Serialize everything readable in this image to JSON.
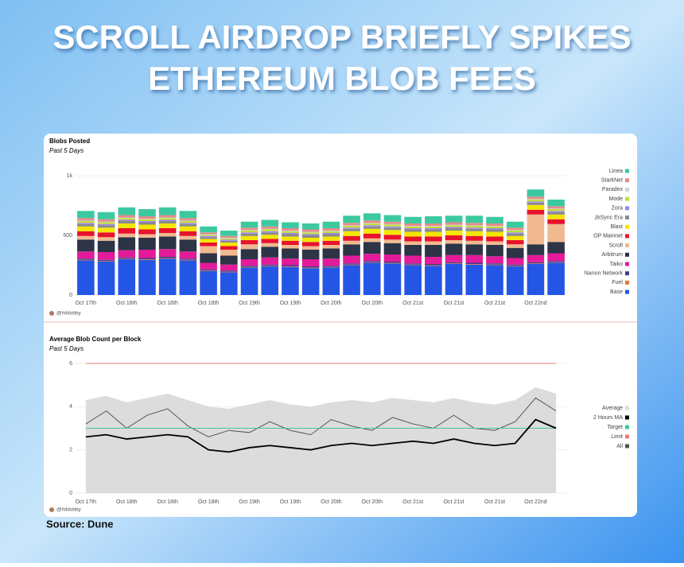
{
  "header": {
    "title_lines": [
      "SCROLL AIRDROP BRIEFLY SPIKES",
      "ETHEREUM BLOB FEES"
    ]
  },
  "chart_data": [
    {
      "type": "bar",
      "stacked": true,
      "title": "Blobs Posted",
      "subtitle": "Past 5 Days",
      "credit": "@hildobby",
      "categories": [
        "Oct 17th",
        null,
        "Oct 18th",
        null,
        "Oct 18th",
        null,
        "Oct 18th",
        null,
        "Oct 19th",
        null,
        "Oct 19th",
        null,
        "Oct 20th",
        null,
        "Oct 20th",
        null,
        "Oct 21st",
        null,
        "Oct 21st",
        null,
        "Oct 21st",
        null,
        "Oct 22nd",
        null
      ],
      "ylim": [
        0,
        1100
      ],
      "yticks": [
        0,
        500,
        {
          "value": 1000,
          "label": "1k"
        }
      ],
      "grid": true,
      "series": [
        {
          "name": "Base",
          "color": "#2456e6",
          "values": [
            290,
            280,
            300,
            295,
            305,
            290,
            200,
            190,
            230,
            240,
            235,
            225,
            230,
            250,
            270,
            265,
            250,
            245,
            260,
            255,
            250,
            240,
            260,
            270
          ]
        },
        {
          "name": "Fuel",
          "color": "#ea7440",
          "values": [
            5,
            5,
            5,
            5,
            5,
            5,
            5,
            5,
            5,
            5,
            5,
            5,
            5,
            5,
            5,
            5,
            5,
            5,
            5,
            5,
            5,
            5,
            5,
            5
          ]
        },
        {
          "name": "Nanon Network",
          "color": "#3b3f8f",
          "values": [
            10,
            10,
            10,
            10,
            10,
            10,
            10,
            10,
            10,
            10,
            10,
            10,
            10,
            10,
            10,
            10,
            10,
            10,
            10,
            10,
            10,
            10,
            10,
            10
          ]
        },
        {
          "name": "Taiko",
          "color": "#e31a9a",
          "values": [
            60,
            65,
            60,
            70,
            65,
            60,
            55,
            50,
            55,
            60,
            55,
            60,
            60,
            65,
            60,
            60,
            65,
            60,
            60,
            65,
            60,
            55,
            60,
            65
          ]
        },
        {
          "name": "Arbitrum",
          "color": "#2c3446",
          "values": [
            100,
            95,
            110,
            100,
            105,
            100,
            80,
            75,
            85,
            90,
            85,
            80,
            85,
            95,
            100,
            95,
            90,
            100,
            95,
            90,
            95,
            85,
            90,
            95
          ]
        },
        {
          "name": "Scroll",
          "color": "#f0b98f",
          "values": [
            30,
            30,
            30,
            30,
            30,
            30,
            60,
            50,
            40,
            30,
            30,
            30,
            30,
            30,
            30,
            30,
            30,
            30,
            30,
            30,
            30,
            30,
            250,
            150
          ]
        },
        {
          "name": "OP Mainnet",
          "color": "#e8122d",
          "values": [
            40,
            40,
            45,
            40,
            40,
            40,
            30,
            30,
            35,
            35,
            35,
            35,
            35,
            40,
            40,
            40,
            40,
            40,
            40,
            40,
            40,
            35,
            40,
            40
          ]
        },
        {
          "name": "Blast",
          "color": "#f4e600",
          "values": [
            40,
            40,
            40,
            40,
            40,
            40,
            30,
            30,
            35,
            35,
            35,
            35,
            35,
            40,
            40,
            40,
            40,
            40,
            40,
            40,
            40,
            35,
            40,
            40
          ]
        },
        {
          "name": "zkSync Era",
          "color": "#8a8a8a",
          "values": [
            20,
            20,
            20,
            20,
            20,
            20,
            15,
            15,
            20,
            20,
            20,
            20,
            20,
            20,
            20,
            20,
            20,
            20,
            20,
            20,
            20,
            20,
            20,
            20
          ]
        },
        {
          "name": "Zora",
          "color": "#9f86f0",
          "values": [
            10,
            10,
            10,
            10,
            10,
            10,
            10,
            10,
            10,
            10,
            10,
            10,
            10,
            10,
            10,
            10,
            10,
            10,
            10,
            10,
            10,
            10,
            10,
            10
          ]
        },
        {
          "name": "Mode",
          "color": "#c2df3a",
          "values": [
            15,
            15,
            15,
            15,
            15,
            15,
            10,
            10,
            15,
            15,
            15,
            15,
            15,
            15,
            15,
            15,
            15,
            15,
            15,
            15,
            15,
            15,
            15,
            15
          ]
        },
        {
          "name": "Paradex",
          "color": "#d2d2d2",
          "values": [
            5,
            5,
            5,
            5,
            5,
            5,
            5,
            5,
            5,
            5,
            5,
            5,
            5,
            5,
            5,
            5,
            5,
            5,
            5,
            5,
            5,
            5,
            5,
            5
          ]
        },
        {
          "name": "StarkNet",
          "color": "#e58b8b",
          "values": [
            20,
            20,
            20,
            20,
            20,
            20,
            15,
            15,
            20,
            20,
            20,
            20,
            20,
            20,
            20,
            20,
            20,
            20,
            20,
            20,
            20,
            20,
            20,
            20
          ]
        },
        {
          "name": "Linea",
          "color": "#3cc9a0",
          "values": [
            60,
            60,
            65,
            60,
            65,
            60,
            50,
            45,
            50,
            55,
            50,
            50,
            55,
            60,
            60,
            55,
            55,
            60,
            55,
            60,
            55,
            50,
            60,
            55
          ]
        }
      ]
    },
    {
      "type": "line",
      "title": "Average Blob Count per Block",
      "subtitle": "Past 5 Days",
      "credit": "@hildobby",
      "categories": [
        "Oct 17th",
        null,
        "Oct 18th",
        null,
        "Oct 18th",
        null,
        "Oct 18th",
        null,
        "Oct 19th",
        null,
        "Oct 19th",
        null,
        "Oct 20th",
        null,
        "Oct 20th",
        null,
        "Oct 21st",
        null,
        "Oct 21st",
        null,
        "Oct 21st",
        null,
        "Oct 22nd",
        null
      ],
      "ylim": [
        0,
        6.5
      ],
      "yticks": [
        0,
        2,
        4,
        6
      ],
      "series": [
        {
          "name": "All",
          "color": "#555555",
          "values": [
            3.2,
            3.8,
            3.0,
            3.6,
            3.9,
            3.1,
            2.6,
            2.9,
            2.8,
            3.3,
            2.9,
            2.7,
            3.4,
            3.1,
            2.9,
            3.5,
            3.2,
            3.0,
            3.6,
            3.0,
            2.9,
            3.3,
            4.4,
            3.8
          ]
        },
        {
          "name": "Limit",
          "color": "#ef7b7b",
          "values": [
            6,
            6,
            6,
            6,
            6,
            6,
            6,
            6,
            6,
            6,
            6,
            6,
            6,
            6,
            6,
            6,
            6,
            6,
            6,
            6,
            6,
            6,
            6,
            6
          ]
        },
        {
          "name": "Target",
          "color": "#3cc9a0",
          "values": [
            3,
            3,
            3,
            3,
            3,
            3,
            3,
            3,
            3,
            3,
            3,
            3,
            3,
            3,
            3,
            3,
            3,
            3,
            3,
            3,
            3,
            3,
            3,
            3
          ]
        },
        {
          "name": "2 Hours MA",
          "color": "#000000",
          "values": [
            2.6,
            2.7,
            2.5,
            2.6,
            2.7,
            2.6,
            2.0,
            1.9,
            2.1,
            2.2,
            2.1,
            2.0,
            2.2,
            2.3,
            2.2,
            2.3,
            2.4,
            2.3,
            2.5,
            2.3,
            2.2,
            2.3,
            3.4,
            3.0
          ]
        },
        {
          "name": "Average",
          "color": "#dcdcdc",
          "area": true,
          "values": [
            4.3,
            4.5,
            4.2,
            4.4,
            4.6,
            4.3,
            4.0,
            3.9,
            4.1,
            4.3,
            4.1,
            4.0,
            4.2,
            4.3,
            4.2,
            4.4,
            4.3,
            4.2,
            4.4,
            4.2,
            4.1,
            4.3,
            4.9,
            4.6
          ]
        }
      ]
    }
  ],
  "footer": {
    "source": "Source: Dune"
  }
}
